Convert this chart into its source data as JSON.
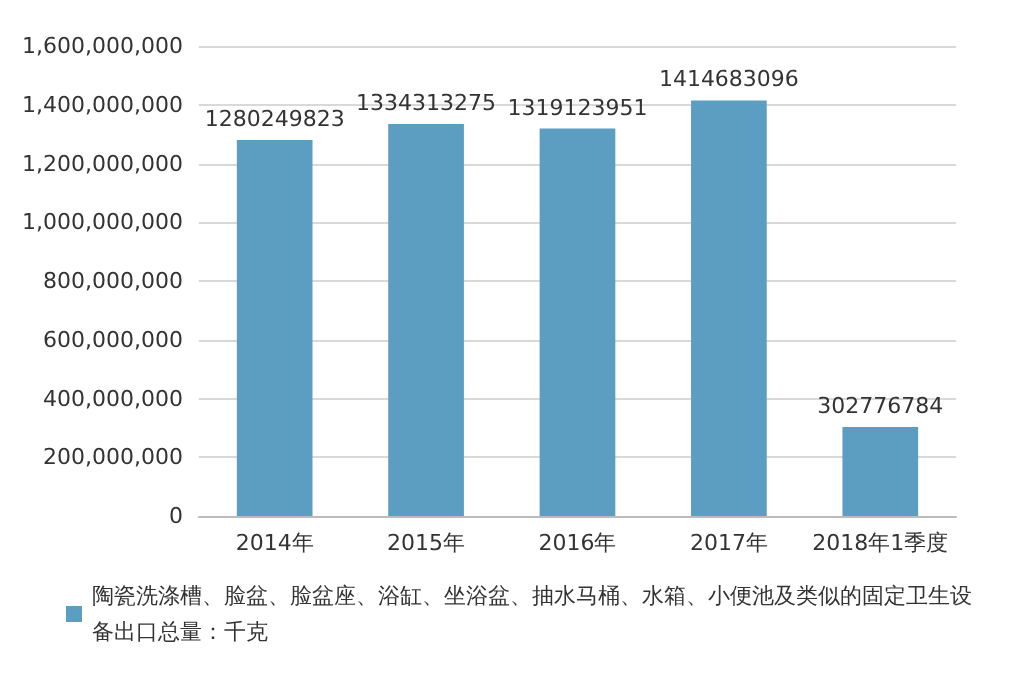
{
  "chart_data": {
    "type": "bar",
    "categories": [
      "2014年",
      "2015年",
      "2016年",
      "2017年",
      "2018年1季度"
    ],
    "series": [
      {
        "name": "陶瓷洗涤槽、脸盆、脸盆座、浴缸、坐浴盆、抽水马桶、水箱、小便池及类似的固定卫生设备出口总量：千克",
        "color": "#5b9ec2",
        "values": [
          1280249823,
          1334313275,
          1319123951,
          1414683096,
          302776784
        ]
      }
    ],
    "ylim": [
      0,
      1600000000
    ],
    "yticks": [
      0,
      {
        "value": 200000000,
        "label": "200,000,000"
      },
      {
        "value": 400000000,
        "label": "400,000,000"
      },
      {
        "value": 600000000,
        "label": "600,000,000"
      },
      {
        "value": 800000000,
        "label": "800,000,000"
      },
      {
        "value": 1000000000,
        "label": "1,000,000,000"
      },
      {
        "value": 1200000000,
        "label": "1,200,000,000"
      },
      {
        "value": 1400000000,
        "label": "1,400,000,000"
      },
      {
        "value": 1600000000,
        "label": "1,600,000,000"
      }
    ],
    "grid": "y",
    "legend": "bottom",
    "data_labels": true
  }
}
